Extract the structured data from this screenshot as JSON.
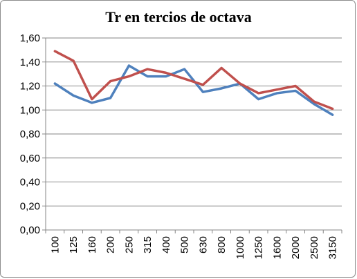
{
  "chart_data": {
    "type": "line",
    "title": "Tr en tercios de octava",
    "categories": [
      "100",
      "125",
      "160",
      "200",
      "250",
      "315",
      "400",
      "500",
      "630",
      "800",
      "1000",
      "1250",
      "1600",
      "2000",
      "2500",
      "3150"
    ],
    "series": [
      {
        "color": "#4f81bd",
        "values": [
          1.22,
          1.12,
          1.06,
          1.1,
          1.37,
          1.28,
          1.28,
          1.34,
          1.15,
          1.18,
          1.22,
          1.09,
          1.14,
          1.16,
          1.05,
          0.96
        ]
      },
      {
        "color": "#c0504d",
        "values": [
          1.49,
          1.41,
          1.09,
          1.24,
          1.28,
          1.34,
          1.31,
          1.26,
          1.21,
          1.35,
          1.22,
          1.14,
          1.17,
          1.2,
          1.07,
          1.01
        ]
      }
    ],
    "y_ticks": [
      "0,00",
      "0,20",
      "0,40",
      "0,60",
      "0,80",
      "1,00",
      "1,20",
      "1,40",
      "1,60"
    ],
    "ylim": [
      0,
      1.6
    ],
    "grid": true,
    "gridline_color": "#868686"
  }
}
